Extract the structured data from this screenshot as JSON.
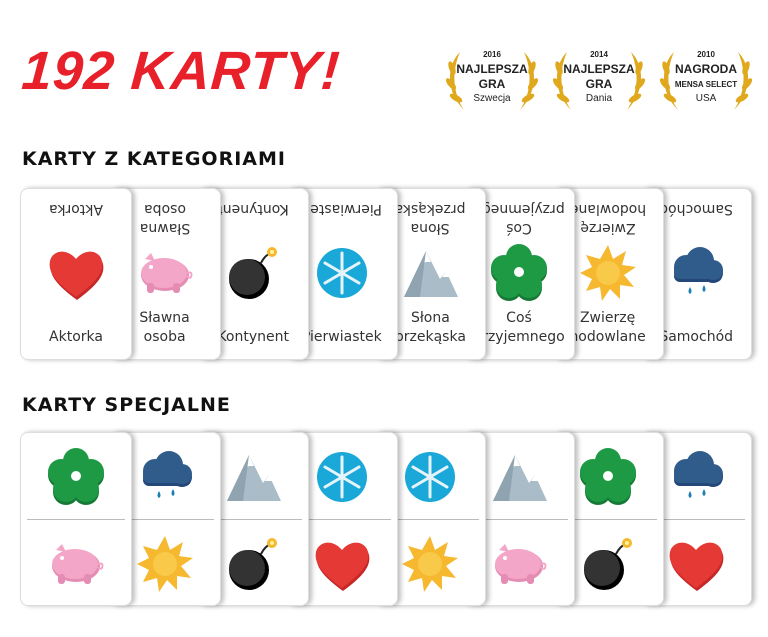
{
  "title": "192 KARTY!",
  "awards": [
    {
      "year": "2016",
      "line1": "NAJLEPSZA",
      "line2": "GRA",
      "line3": "Szwecja"
    },
    {
      "year": "2014",
      "line1": "NAJLEPSZA",
      "line2": "GRA",
      "line3": "Dania"
    },
    {
      "year": "2010",
      "line1": "NAGRODA",
      "line2": "MENSA SELECT",
      "line3": "USA"
    }
  ],
  "categories_heading": "KARTY Z KATEGORIAMI",
  "category_cards": [
    {
      "label": "Aktorka",
      "icon": "heart"
    },
    {
      "label": "Sławna\nosoba",
      "icon": "pig"
    },
    {
      "label": "Kontynent",
      "icon": "bomb"
    },
    {
      "label": "Pierwiastek",
      "icon": "snowflake"
    },
    {
      "label": "Słona\nprzekąska",
      "icon": "mountain"
    },
    {
      "label": "Coś\nprzyjemnego",
      "icon": "flower"
    },
    {
      "label": "Zwierzę\nhodowlane",
      "icon": "sun"
    },
    {
      "label": "Samochód",
      "icon": "cloud"
    }
  ],
  "special_heading": "KARTY SPECJALNE",
  "special_cards": [
    {
      "top": "flower",
      "bottom": "pig"
    },
    {
      "top": "cloud",
      "bottom": "sun"
    },
    {
      "top": "mountain",
      "bottom": "bomb"
    },
    {
      "top": "snowflake",
      "bottom": "heart"
    },
    {
      "top": "snowflake",
      "bottom": "sun"
    },
    {
      "top": "mountain",
      "bottom": "pig"
    },
    {
      "top": "flower",
      "bottom": "bomb"
    },
    {
      "top": "cloud",
      "bottom": "heart"
    }
  ],
  "colors": {
    "title": "#e8202a",
    "heart": "#e53935",
    "pig": "#f4a6c8",
    "bomb": "#222222",
    "snowflake": "#1aa8d8",
    "mountain": "#a9bcc8",
    "flower": "#1e9a45",
    "sun": "#f5b82e",
    "cloud": "#2f5c8a"
  }
}
